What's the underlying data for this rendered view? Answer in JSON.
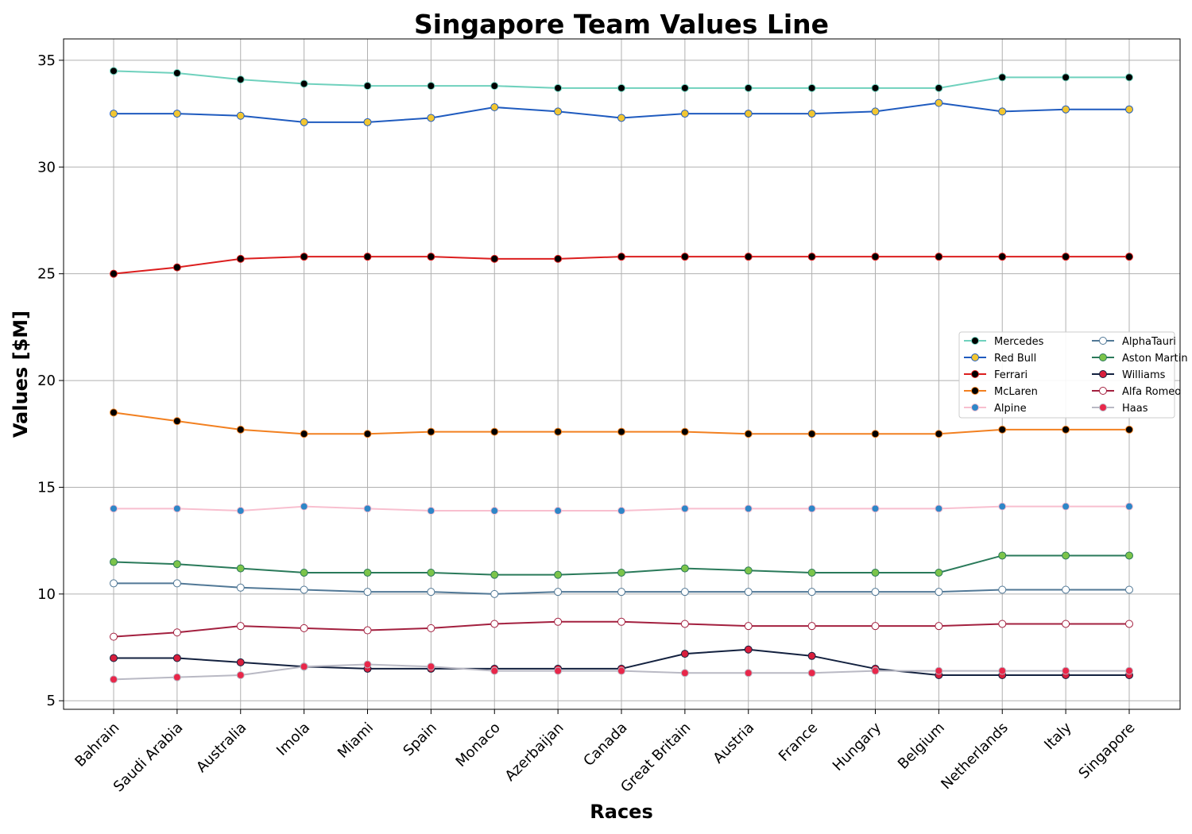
{
  "chart_data": {
    "type": "line",
    "title": "Singapore Team Values Line",
    "xlabel": "Races",
    "ylabel": "Values [$M]",
    "ylim": [
      4.6,
      36.0
    ],
    "yticks": [
      5,
      10,
      15,
      20,
      25,
      30,
      35
    ],
    "grid": true,
    "legend_placement": "center-right",
    "categories": [
      "Bahrain",
      "Saudi Arabia",
      "Australia",
      "Imola",
      "Miami",
      "Spain",
      "Monaco",
      "Azerbaijan",
      "Canada",
      "Great Britain",
      "Austria",
      "France",
      "Hungary",
      "Belgium",
      "Netherlands",
      "Italy",
      "Singapore"
    ],
    "series": [
      {
        "name": "Mercedes",
        "line_color": "#6fd1bd",
        "marker_fill": "#000000",
        "marker_edge": "#6fd1bd",
        "values": [
          34.5,
          34.4,
          34.1,
          33.9,
          33.8,
          33.8,
          33.8,
          33.7,
          33.7,
          33.7,
          33.7,
          33.7,
          33.7,
          33.7,
          34.2,
          34.2,
          34.2
        ]
      },
      {
        "name": "Red Bull",
        "line_color": "#1f5bbf",
        "marker_fill": "#f2c631",
        "marker_edge": "#1f5bbf",
        "values": [
          32.5,
          32.5,
          32.4,
          32.1,
          32.1,
          32.3,
          32.8,
          32.6,
          32.3,
          32.5,
          32.5,
          32.5,
          32.6,
          33.0,
          32.6,
          32.7,
          32.7
        ]
      },
      {
        "name": "Ferrari",
        "line_color": "#dc1e1e",
        "marker_fill": "#000000",
        "marker_edge": "#dc1e1e",
        "values": [
          25.0,
          25.3,
          25.7,
          25.8,
          25.8,
          25.8,
          25.7,
          25.7,
          25.8,
          25.8,
          25.8,
          25.8,
          25.8,
          25.8,
          25.8,
          25.8,
          25.8
        ]
      },
      {
        "name": "McLaren",
        "line_color": "#f28020",
        "marker_fill": "#000000",
        "marker_edge": "#f28020",
        "values": [
          18.5,
          18.1,
          17.7,
          17.5,
          17.5,
          17.6,
          17.6,
          17.6,
          17.6,
          17.6,
          17.5,
          17.5,
          17.5,
          17.5,
          17.7,
          17.7,
          17.7
        ]
      },
      {
        "name": "Alpine",
        "line_color": "#f8bfcf",
        "marker_fill": "#2e86c7",
        "marker_edge": "#f8bfcf",
        "values": [
          14.0,
          14.0,
          13.9,
          14.1,
          14.0,
          13.9,
          13.9,
          13.9,
          13.9,
          14.0,
          14.0,
          14.0,
          14.0,
          14.0,
          14.1,
          14.1,
          14.1
        ]
      },
      {
        "name": "AlphaTauri",
        "line_color": "#517896",
        "marker_fill": "#ffffff",
        "marker_edge": "#517896",
        "values": [
          10.5,
          10.5,
          10.3,
          10.2,
          10.1,
          10.1,
          10.0,
          10.1,
          10.1,
          10.1,
          10.1,
          10.1,
          10.1,
          10.1,
          10.2,
          10.2,
          10.2
        ]
      },
      {
        "name": "Aston Martin",
        "line_color": "#2a7a5a",
        "marker_fill": "#7cc44a",
        "marker_edge": "#2a7a5a",
        "values": [
          11.5,
          11.4,
          11.2,
          11.0,
          11.0,
          11.0,
          10.9,
          10.9,
          11.0,
          11.2,
          11.1,
          11.0,
          11.0,
          11.0,
          11.8,
          11.8,
          11.8
        ]
      },
      {
        "name": "Williams",
        "line_color": "#13213f",
        "marker_fill": "#d81e3c",
        "marker_edge": "#13213f",
        "values": [
          7.0,
          7.0,
          6.8,
          6.6,
          6.5,
          6.5,
          6.5,
          6.5,
          6.5,
          7.2,
          7.4,
          7.1,
          6.5,
          6.2,
          6.2,
          6.2,
          6.2
        ]
      },
      {
        "name": "Alfa Romeo",
        "line_color": "#a3203f",
        "marker_fill": "#ffffff",
        "marker_edge": "#a3203f",
        "values": [
          8.0,
          8.2,
          8.5,
          8.4,
          8.3,
          8.4,
          8.6,
          8.7,
          8.7,
          8.6,
          8.5,
          8.5,
          8.5,
          8.5,
          8.6,
          8.6,
          8.6
        ]
      },
      {
        "name": "Haas",
        "line_color": "#b9b9c4",
        "marker_fill": "#e8274a",
        "marker_edge": "#b9b9c4",
        "values": [
          6.0,
          6.1,
          6.2,
          6.6,
          6.7,
          6.6,
          6.4,
          6.4,
          6.4,
          6.3,
          6.3,
          6.3,
          6.4,
          6.4,
          6.4,
          6.4,
          6.4
        ]
      }
    ]
  }
}
